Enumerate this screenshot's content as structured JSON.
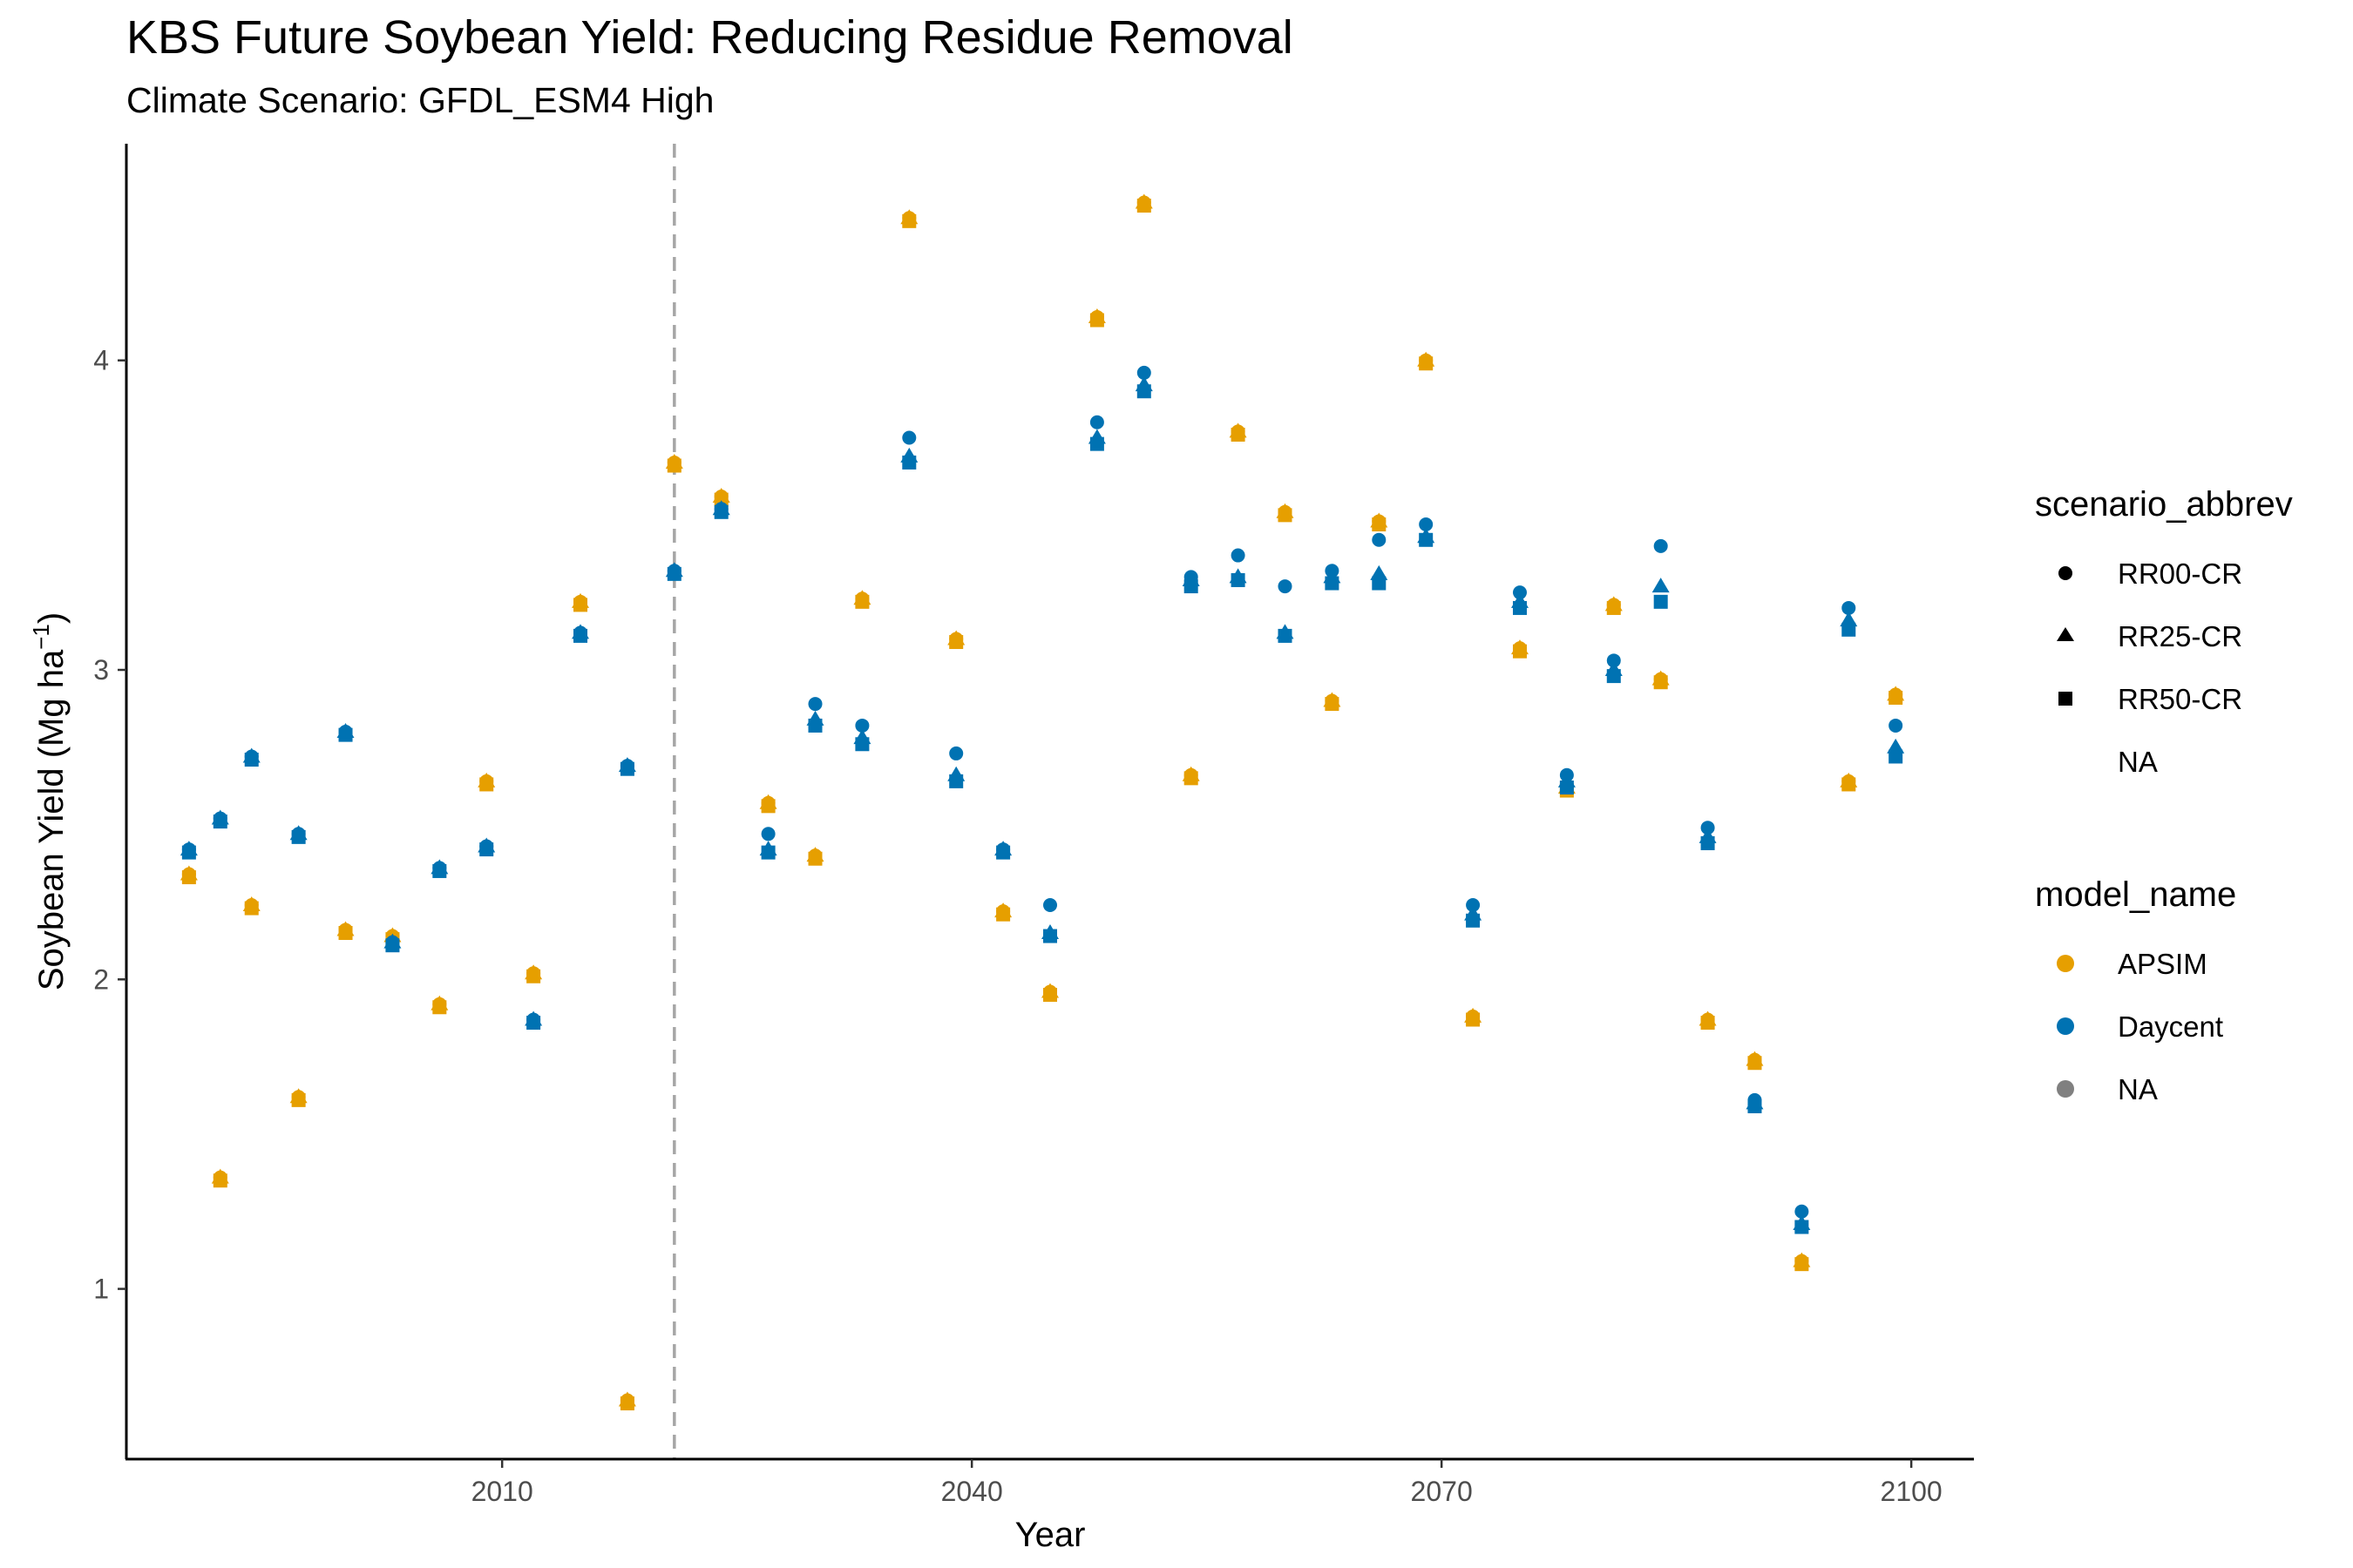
{
  "chart_data": {
    "type": "scatter",
    "title": "KBS Future Soybean Yield: Reducing Residue Removal",
    "subtitle": "Climate Scenario: GFDL_ESM4 High",
    "xlabel": "Year",
    "ylabel": "Soybean Yield (Mg ha",
    "ylabel_sup": "−1",
    "ylabel_close": ")",
    "xlim": [
      1986,
      2104
    ],
    "ylim": [
      0.45,
      4.7
    ],
    "x_ticks": [
      2010,
      2040,
      2070,
      2100
    ],
    "y_ticks": [
      1,
      2,
      3,
      4
    ],
    "reference_line_x": 2021,
    "grid": false,
    "legend_position": "right",
    "colors": {
      "APSIM": "#E69F00",
      "Daycent": "#0072B2",
      "NA": "#808080"
    },
    "legends": [
      {
        "title": "scenario_abbrev",
        "items": [
          {
            "label": "RR00-CR",
            "shape": "circle"
          },
          {
            "label": "RR25-CR",
            "shape": "triangle"
          },
          {
            "label": "RR50-CR",
            "shape": "square"
          },
          {
            "label": "NA",
            "shape": "none"
          }
        ]
      },
      {
        "title": "model_name",
        "items": [
          {
            "label": "APSIM",
            "color": "#E69F00"
          },
          {
            "label": "Daycent",
            "color": "#0072B2"
          },
          {
            "label": "NA",
            "color": "#808080"
          }
        ]
      }
    ],
    "series": [
      {
        "model": "APSIM",
        "scenario": "RR00-CR",
        "points": [
          [
            1990,
            2.34
          ],
          [
            1992,
            1.36
          ],
          [
            1994,
            2.24
          ],
          [
            1997,
            1.62
          ],
          [
            2000,
            2.16
          ],
          [
            2003,
            2.14
          ],
          [
            2006,
            1.92
          ],
          [
            2009,
            2.64
          ],
          [
            2012,
            2.02
          ],
          [
            2015,
            3.22
          ],
          [
            2018,
            0.64
          ],
          [
            2021,
            3.67
          ],
          [
            2024,
            3.56
          ],
          [
            2027,
            2.57
          ],
          [
            2030,
            2.4
          ],
          [
            2033,
            3.23
          ],
          [
            2036,
            4.46
          ],
          [
            2039,
            3.1
          ],
          [
            2042,
            2.22
          ],
          [
            2045,
            1.96
          ],
          [
            2048,
            4.14
          ],
          [
            2051,
            4.51
          ],
          [
            2054,
            2.66
          ],
          [
            2057,
            3.77
          ],
          [
            2060,
            3.51
          ],
          [
            2063,
            2.9
          ],
          [
            2066,
            3.48
          ],
          [
            2069,
            4.0
          ],
          [
            2072,
            1.88
          ],
          [
            2075,
            3.07
          ],
          [
            2078,
            2.62
          ],
          [
            2081,
            3.21
          ],
          [
            2084,
            2.97
          ],
          [
            2087,
            1.87
          ],
          [
            2090,
            1.74
          ],
          [
            2093,
            1.09
          ],
          [
            2096,
            2.64
          ],
          [
            2099,
            2.92
          ]
        ]
      },
      {
        "model": "APSIM",
        "scenario": "RR25-CR",
        "points": [
          [
            1990,
            2.34
          ],
          [
            1992,
            1.36
          ],
          [
            1994,
            2.24
          ],
          [
            1997,
            1.62
          ],
          [
            2000,
            2.16
          ],
          [
            2003,
            2.14
          ],
          [
            2006,
            1.92
          ],
          [
            2009,
            2.64
          ],
          [
            2012,
            2.02
          ],
          [
            2015,
            3.22
          ],
          [
            2018,
            0.64
          ],
          [
            2021,
            3.67
          ],
          [
            2024,
            3.56
          ],
          [
            2027,
            2.57
          ],
          [
            2030,
            2.4
          ],
          [
            2033,
            3.23
          ],
          [
            2036,
            4.46
          ],
          [
            2039,
            3.1
          ],
          [
            2042,
            2.22
          ],
          [
            2045,
            1.96
          ],
          [
            2048,
            4.14
          ],
          [
            2051,
            4.51
          ],
          [
            2054,
            2.66
          ],
          [
            2057,
            3.77
          ],
          [
            2060,
            3.51
          ],
          [
            2063,
            2.9
          ],
          [
            2066,
            3.48
          ],
          [
            2069,
            4.0
          ],
          [
            2072,
            1.88
          ],
          [
            2075,
            3.07
          ],
          [
            2078,
            2.62
          ],
          [
            2081,
            3.21
          ],
          [
            2084,
            2.97
          ],
          [
            2087,
            1.87
          ],
          [
            2090,
            1.74
          ],
          [
            2093,
            1.09
          ],
          [
            2096,
            2.64
          ],
          [
            2099,
            2.92
          ]
        ]
      },
      {
        "model": "APSIM",
        "scenario": "RR50-CR",
        "points": [
          [
            1990,
            2.33
          ],
          [
            1992,
            1.35
          ],
          [
            1994,
            2.23
          ],
          [
            1997,
            1.61
          ],
          [
            2000,
            2.15
          ],
          [
            2003,
            2.13
          ],
          [
            2006,
            1.91
          ],
          [
            2009,
            2.63
          ],
          [
            2012,
            2.01
          ],
          [
            2015,
            3.21
          ],
          [
            2018,
            0.63
          ],
          [
            2021,
            3.66
          ],
          [
            2024,
            3.55
          ],
          [
            2027,
            2.56
          ],
          [
            2030,
            2.39
          ],
          [
            2033,
            3.22
          ],
          [
            2036,
            4.45
          ],
          [
            2039,
            3.09
          ],
          [
            2042,
            2.21
          ],
          [
            2045,
            1.95
          ],
          [
            2048,
            4.13
          ],
          [
            2051,
            4.5
          ],
          [
            2054,
            2.65
          ],
          [
            2057,
            3.76
          ],
          [
            2060,
            3.5
          ],
          [
            2063,
            2.89
          ],
          [
            2066,
            3.47
          ],
          [
            2069,
            3.99
          ],
          [
            2072,
            1.87
          ],
          [
            2075,
            3.06
          ],
          [
            2078,
            2.61
          ],
          [
            2081,
            3.2
          ],
          [
            2084,
            2.96
          ],
          [
            2087,
            1.86
          ],
          [
            2090,
            1.73
          ],
          [
            2093,
            1.08
          ],
          [
            2096,
            2.63
          ],
          [
            2099,
            2.91
          ]
        ]
      },
      {
        "model": "Daycent",
        "scenario": "RR00-CR",
        "points": [
          [
            1990,
            2.42
          ],
          [
            1992,
            2.52
          ],
          [
            1994,
            2.72
          ],
          [
            1997,
            2.47
          ],
          [
            2000,
            2.8
          ],
          [
            2003,
            2.12
          ],
          [
            2006,
            2.36
          ],
          [
            2009,
            2.43
          ],
          [
            2012,
            1.87
          ],
          [
            2015,
            3.12
          ],
          [
            2018,
            2.69
          ],
          [
            2021,
            3.32
          ],
          [
            2024,
            3.52
          ],
          [
            2027,
            2.47
          ],
          [
            2030,
            2.89
          ],
          [
            2033,
            2.82
          ],
          [
            2036,
            3.75
          ],
          [
            2039,
            2.73
          ],
          [
            2042,
            2.42
          ],
          [
            2045,
            2.24
          ],
          [
            2048,
            3.8
          ],
          [
            2051,
            3.96
          ],
          [
            2054,
            3.3
          ],
          [
            2057,
            3.37
          ],
          [
            2060,
            3.27
          ],
          [
            2063,
            3.32
          ],
          [
            2066,
            3.42
          ],
          [
            2069,
            3.47
          ],
          [
            2072,
            2.24
          ],
          [
            2075,
            3.25
          ],
          [
            2078,
            2.66
          ],
          [
            2081,
            3.03
          ],
          [
            2084,
            3.4
          ],
          [
            2087,
            2.49
          ],
          [
            2090,
            1.61
          ],
          [
            2093,
            1.25
          ],
          [
            2096,
            3.2
          ],
          [
            2099,
            2.82
          ]
        ]
      },
      {
        "model": "Daycent",
        "scenario": "RR25-CR",
        "points": [
          [
            1990,
            2.42
          ],
          [
            1992,
            2.52
          ],
          [
            1994,
            2.72
          ],
          [
            1997,
            2.47
          ],
          [
            2000,
            2.8
          ],
          [
            2003,
            2.12
          ],
          [
            2006,
            2.36
          ],
          [
            2009,
            2.43
          ],
          [
            2012,
            1.87
          ],
          [
            2015,
            3.12
          ],
          [
            2018,
            2.69
          ],
          [
            2021,
            3.32
          ],
          [
            2024,
            3.52
          ],
          [
            2027,
            2.42
          ],
          [
            2030,
            2.84
          ],
          [
            2033,
            2.78
          ],
          [
            2036,
            3.69
          ],
          [
            2039,
            2.66
          ],
          [
            2042,
            2.42
          ],
          [
            2045,
            2.15
          ],
          [
            2048,
            3.75
          ],
          [
            2051,
            3.92
          ],
          [
            2054,
            3.29
          ],
          [
            2057,
            3.3
          ],
          [
            2060,
            3.12
          ],
          [
            2063,
            3.3
          ],
          [
            2066,
            3.31
          ],
          [
            2069,
            3.43
          ],
          [
            2072,
            2.21
          ],
          [
            2075,
            3.22
          ],
          [
            2078,
            2.64
          ],
          [
            2081,
            3.0
          ],
          [
            2084,
            3.27
          ],
          [
            2087,
            2.46
          ],
          [
            2090,
            1.6
          ],
          [
            2093,
            1.21
          ],
          [
            2096,
            3.16
          ],
          [
            2099,
            2.75
          ]
        ]
      },
      {
        "model": "Daycent",
        "scenario": "RR50-CR",
        "points": [
          [
            1990,
            2.41
          ],
          [
            1992,
            2.51
          ],
          [
            1994,
            2.71
          ],
          [
            1997,
            2.46
          ],
          [
            2000,
            2.79
          ],
          [
            2003,
            2.11
          ],
          [
            2006,
            2.35
          ],
          [
            2009,
            2.42
          ],
          [
            2012,
            1.86
          ],
          [
            2015,
            3.11
          ],
          [
            2018,
            2.68
          ],
          [
            2021,
            3.31
          ],
          [
            2024,
            3.51
          ],
          [
            2027,
            2.41
          ],
          [
            2030,
            2.82
          ],
          [
            2033,
            2.76
          ],
          [
            2036,
            3.67
          ],
          [
            2039,
            2.64
          ],
          [
            2042,
            2.41
          ],
          [
            2045,
            2.14
          ],
          [
            2048,
            3.73
          ],
          [
            2051,
            3.9
          ],
          [
            2054,
            3.27
          ],
          [
            2057,
            3.29
          ],
          [
            2060,
            3.11
          ],
          [
            2063,
            3.28
          ],
          [
            2066,
            3.28
          ],
          [
            2069,
            3.42
          ],
          [
            2072,
            2.19
          ],
          [
            2075,
            3.2
          ],
          [
            2078,
            2.62
          ],
          [
            2081,
            2.98
          ],
          [
            2084,
            3.22
          ],
          [
            2087,
            2.44
          ],
          [
            2090,
            1.59
          ],
          [
            2093,
            1.2
          ],
          [
            2096,
            3.13
          ],
          [
            2099,
            2.72
          ]
        ]
      }
    ]
  }
}
